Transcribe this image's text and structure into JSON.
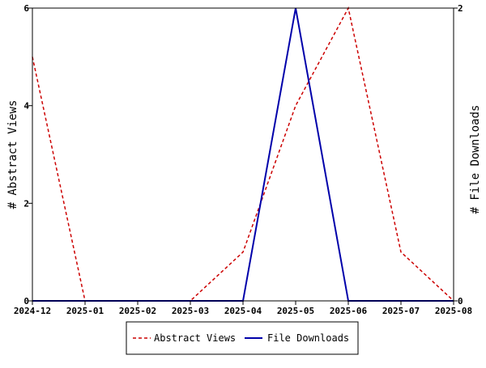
{
  "chart_data": {
    "type": "line",
    "title": "",
    "x": [
      "2024-12",
      "2025-01",
      "2025-02",
      "2025-03",
      "2025-04",
      "2025-05",
      "2025-06",
      "2025-07",
      "2025-08"
    ],
    "left_axis": {
      "label": "# Abstract Views",
      "min": 0,
      "max": 6,
      "ticks": [
        0,
        2,
        4,
        6
      ]
    },
    "right_axis": {
      "label": "# File Downloads",
      "min": 0,
      "max": 2,
      "ticks": [
        0,
        2
      ]
    },
    "series": [
      {
        "name": "Abstract Views",
        "axis": "left",
        "color": "#cc0000",
        "style": "dashed",
        "values": [
          5,
          0,
          0,
          0,
          1,
          4,
          6,
          1,
          0
        ]
      },
      {
        "name": "File Downloads",
        "axis": "right",
        "color": "#0000aa",
        "style": "solid",
        "values": [
          0,
          0,
          0,
          0,
          0,
          2,
          0,
          0,
          0
        ]
      }
    ],
    "grid": false,
    "legend_position": "bottom"
  }
}
